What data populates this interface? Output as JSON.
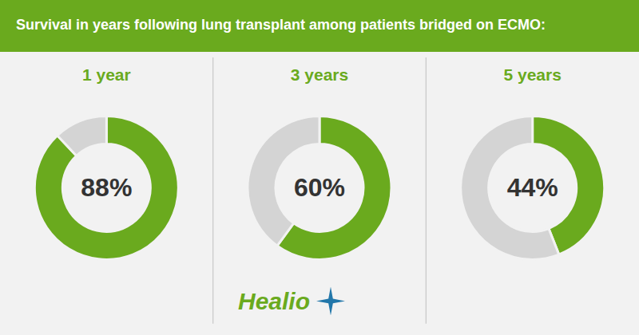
{
  "chart_data": {
    "type": "donut",
    "title": "Survival in years following lung transplant among patients bridged on ECMO:",
    "categories": [
      "1 year",
      "3 years",
      "5 years"
    ],
    "series": [
      {
        "color": "#6aaa1e",
        "values": [
          88,
          60,
          44
        ],
        "value_labels": [
          "88%",
          "60%",
          "44%"
        ]
      },
      {
        "color": "#d4d4d4",
        "values": [
          12,
          40,
          56
        ]
      }
    ],
    "annotations": [
      "Healio"
    ]
  }
}
